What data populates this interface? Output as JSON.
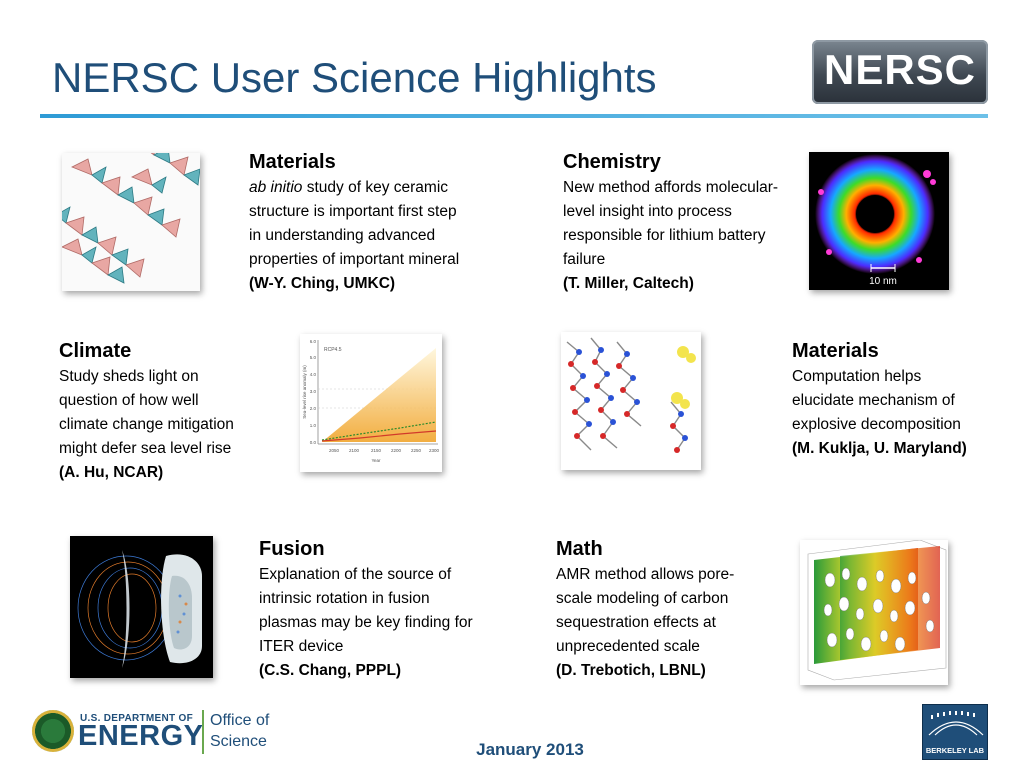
{
  "slide": {
    "title": "NERSC User Science Highlights",
    "logo_text": "NERSC",
    "date": "January 2013"
  },
  "highlights": [
    {
      "heading": "Materials",
      "lines_italic_lead": "ab initio",
      "lines": [
        "study of key ceramic",
        "structure is important first step",
        "in understanding advanced",
        "properties of important mineral"
      ],
      "credit": "(W-Y. Ching, UMKC)"
    },
    {
      "heading": "Chemistry",
      "lines": [
        "New method affords molecular-",
        "level insight into process",
        "responsible for lithium battery",
        "failure"
      ],
      "credit": "(T. Miller, Caltech)"
    },
    {
      "heading": "Climate",
      "lines": [
        "Study sheds light on",
        "question of how well",
        "climate change mitigation",
        "might defer sea level rise"
      ],
      "credit": "(A. Hu, NCAR)"
    },
    {
      "heading": "Materials",
      "lines": [
        "Computation helps",
        "elucidate mechanism of",
        "explosive decomposition"
      ],
      "credit": "(M. Kuklja, U. Maryland)"
    },
    {
      "heading": "Fusion",
      "lines": [
        "Explanation of the source of",
        "intrinsic rotation in fusion",
        "plasmas may be key finding for",
        "ITER device"
      ],
      "credit": "(C.S. Chang, PPPL)"
    },
    {
      "heading": "Math",
      "lines": [
        "AMR method allows pore-",
        "scale modeling of carbon",
        "sequestration effects at",
        "unprecedented scale"
      ],
      "credit": "(D. Trebotich, LBNL)"
    }
  ],
  "images": {
    "chem_scale_label": "10 nm",
    "climate_plot_label": "RCP4.5",
    "climate_ylabel": "Sea-level rise anomaly (m)",
    "climate_xlabel": "Year",
    "climate_xticks": [
      "2050",
      "2100",
      "2150",
      "2200",
      "2250",
      "2300"
    ],
    "climate_yticks": [
      "0.0",
      "1.0",
      "2.0",
      "3.0",
      "4.0",
      "5.0",
      "6.0"
    ]
  },
  "footer": {
    "doe_small": "U.S. DEPARTMENT OF",
    "doe_big": "ENERGY",
    "office_line1": "Office of",
    "office_line2": "Science",
    "berkeley_label": "BERKELEY LAB"
  }
}
